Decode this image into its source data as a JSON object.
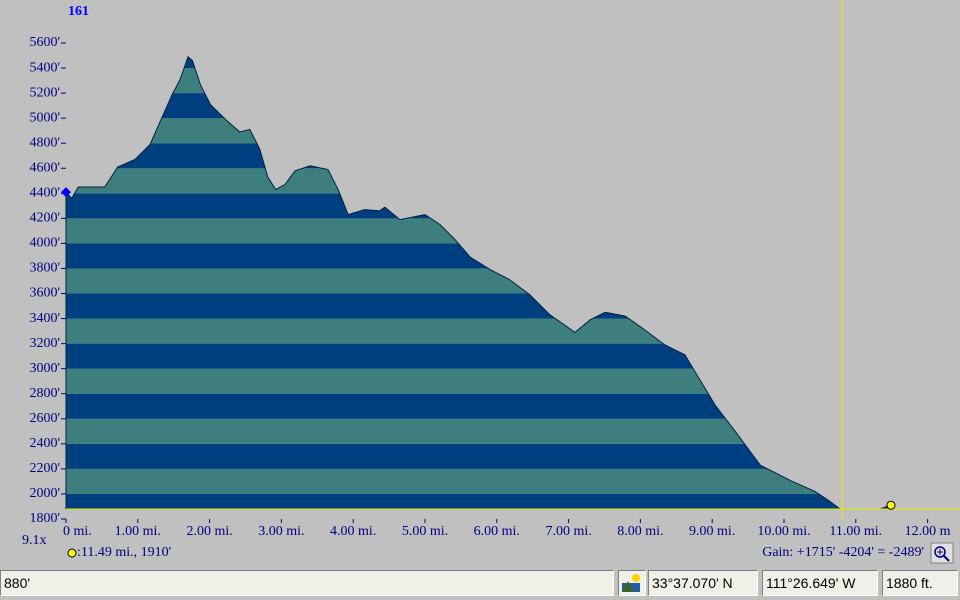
{
  "chart_data": {
    "type": "area",
    "corner_label": "161",
    "zoom_label": "9.1x",
    "x": [
      0,
      0.08,
      0.17,
      0.4,
      0.54,
      0.72,
      0.96,
      1.17,
      1.34,
      1.48,
      1.59,
      1.7,
      1.76,
      1.87,
      2.01,
      2.22,
      2.42,
      2.56,
      2.7,
      2.81,
      2.92,
      3.05,
      3.19,
      3.4,
      3.65,
      3.79,
      3.93,
      4.16,
      4.37,
      4.44,
      4.65,
      5.0,
      5.21,
      5.42,
      5.63,
      5.91,
      6.18,
      6.46,
      6.74,
      7.09,
      7.3,
      7.51,
      7.79,
      8.06,
      8.34,
      8.62,
      8.83,
      9.04,
      9.32,
      9.67,
      10.08,
      10.43,
      10.64,
      10.78,
      11.34,
      11.48
    ],
    "series": [
      {
        "colors": [
          "#003f7f",
          "#3d7f7f"
        ],
        "values": [
          4410,
          4360,
          4450,
          4450,
          4450,
          4610,
          4670,
          4790,
          5010,
          5190,
          5310,
          5490,
          5460,
          5270,
          5110,
          4990,
          4890,
          4910,
          4750,
          4530,
          4430,
          4470,
          4580,
          4620,
          4590,
          4430,
          4230,
          4270,
          4260,
          4290,
          4190,
          4230,
          4150,
          4030,
          3890,
          3790,
          3710,
          3590,
          3430,
          3290,
          3390,
          3450,
          3420,
          3310,
          3190,
          3110,
          2910,
          2710,
          2500,
          2230,
          2110,
          2020,
          1940,
          1880,
          1880,
          1910
        ]
      }
    ],
    "xlim": [
      0,
      12.2
    ],
    "ylim": [
      1800,
      5600
    ],
    "xticks": [
      {
        "value": 0,
        "label": "0 mi."
      },
      {
        "value": 1,
        "label": "1.00 mi."
      },
      {
        "value": 2,
        "label": "2.00 mi."
      },
      {
        "value": 3,
        "label": "3.00 mi."
      },
      {
        "value": 4,
        "label": "4.00 mi."
      },
      {
        "value": 5,
        "label": "5.00 mi."
      },
      {
        "value": 6,
        "label": "6.00 mi."
      },
      {
        "value": 7,
        "label": "7.00 mi."
      },
      {
        "value": 8,
        "label": "8.00 mi."
      },
      {
        "value": 9,
        "label": "9.00 mi."
      },
      {
        "value": 10,
        "label": "10.00 mi."
      },
      {
        "value": 11,
        "label": "11.00 mi."
      },
      {
        "value": 12,
        "label": "12.00 m"
      }
    ],
    "yticks": [
      {
        "value": 1800,
        "label": "1800'"
      },
      {
        "value": 2000,
        "label": "2000'"
      },
      {
        "value": 2200,
        "label": "2200'"
      },
      {
        "value": 2400,
        "label": "2400'"
      },
      {
        "value": 2600,
        "label": "2600'"
      },
      {
        "value": 2800,
        "label": "2800'"
      },
      {
        "value": 3000,
        "label": "3000'"
      },
      {
        "value": 3200,
        "label": "3200'"
      },
      {
        "value": 3400,
        "label": "3400'"
      },
      {
        "value": 3600,
        "label": "3600'"
      },
      {
        "value": 3800,
        "label": "3800'"
      },
      {
        "value": 4000,
        "label": "4000'"
      },
      {
        "value": 4200,
        "label": "4200'"
      },
      {
        "value": 4400,
        "label": "4400'"
      },
      {
        "value": 4600,
        "label": "4600'"
      },
      {
        "value": 4800,
        "label": "4800'"
      },
      {
        "value": 5000,
        "label": "5000'"
      },
      {
        "value": 5200,
        "label": "5200'"
      },
      {
        "value": 5400,
        "label": "5400'"
      },
      {
        "value": 5600,
        "label": "5600'"
      }
    ],
    "cursor": {
      "x": 10.81,
      "y": 1880,
      "color": "#e8e800"
    },
    "marker": {
      "x": 11.49,
      "y": 1910,
      "label": ":11.49 mi., 1910'",
      "color": "#ffff00"
    },
    "gain_label": "Gain: +1715' -4204' = -2489'"
  },
  "status_bar": {
    "elevation_left": "880'",
    "latitude": "33°37.070' N",
    "longitude": "111°26.649' W",
    "elevation": "1880 ft."
  }
}
